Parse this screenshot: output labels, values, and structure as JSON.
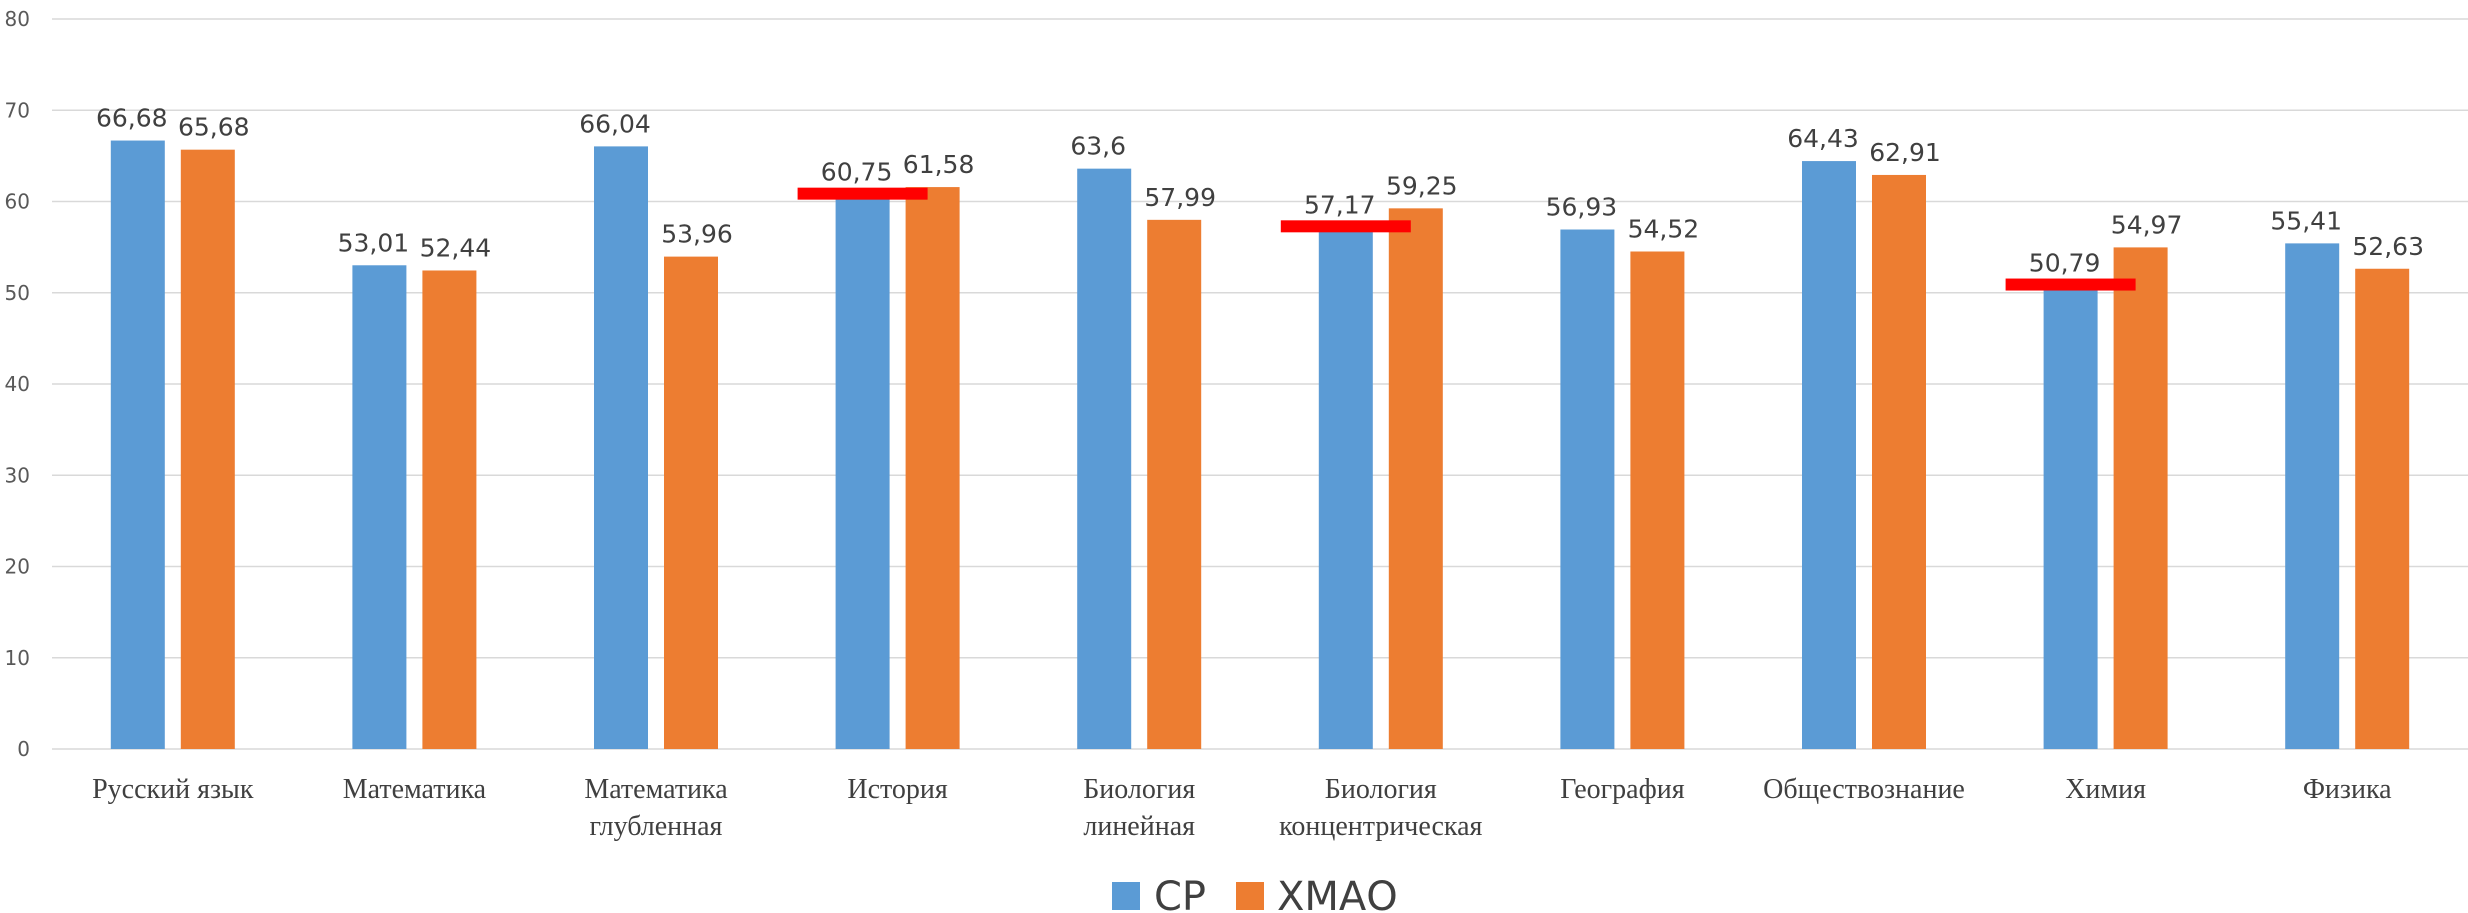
{
  "chart_data": {
    "type": "bar",
    "categories": [
      [
        "Русский язык"
      ],
      [
        "Математика"
      ],
      [
        "Математика",
        "глубленная"
      ],
      [
        "История"
      ],
      [
        "Биология",
        "линейная"
      ],
      [
        "Биология",
        "концентрическая"
      ],
      [
        "География"
      ],
      [
        "Обществознание"
      ],
      [
        "Химия"
      ],
      [
        "Физика"
      ]
    ],
    "series": [
      {
        "name": "СР",
        "color": "#5B9BD5",
        "values": [
          66.68,
          53.01,
          66.04,
          60.75,
          63.6,
          57.17,
          56.93,
          64.43,
          50.79,
          55.41
        ],
        "labels": [
          "66,68",
          "53,01",
          "66,04",
          "60,75",
          "63,6",
          "57,17",
          "56,93",
          "64,43",
          "50,79",
          "55,41"
        ]
      },
      {
        "name": "ХМАО",
        "color": "#ED7D31",
        "values": [
          65.68,
          52.44,
          53.96,
          61.58,
          57.99,
          59.25,
          54.52,
          62.91,
          54.97,
          52.63
        ],
        "labels": [
          "65,68",
          "52,44",
          "53,96",
          "61,58",
          "57,99",
          "59,25",
          "54,52",
          "62,91",
          "54,97",
          "52,63"
        ]
      }
    ],
    "highlight_marks": {
      "color": "#FF0000",
      "categories": [
        3,
        5,
        8
      ],
      "series": 0
    },
    "ylim": [
      0,
      80
    ],
    "yticks": [
      0,
      10,
      20,
      30,
      40,
      50,
      60,
      70,
      80
    ],
    "grid": true,
    "legend_position": "bottom",
    "title": "",
    "xlabel": "",
    "ylabel": ""
  }
}
